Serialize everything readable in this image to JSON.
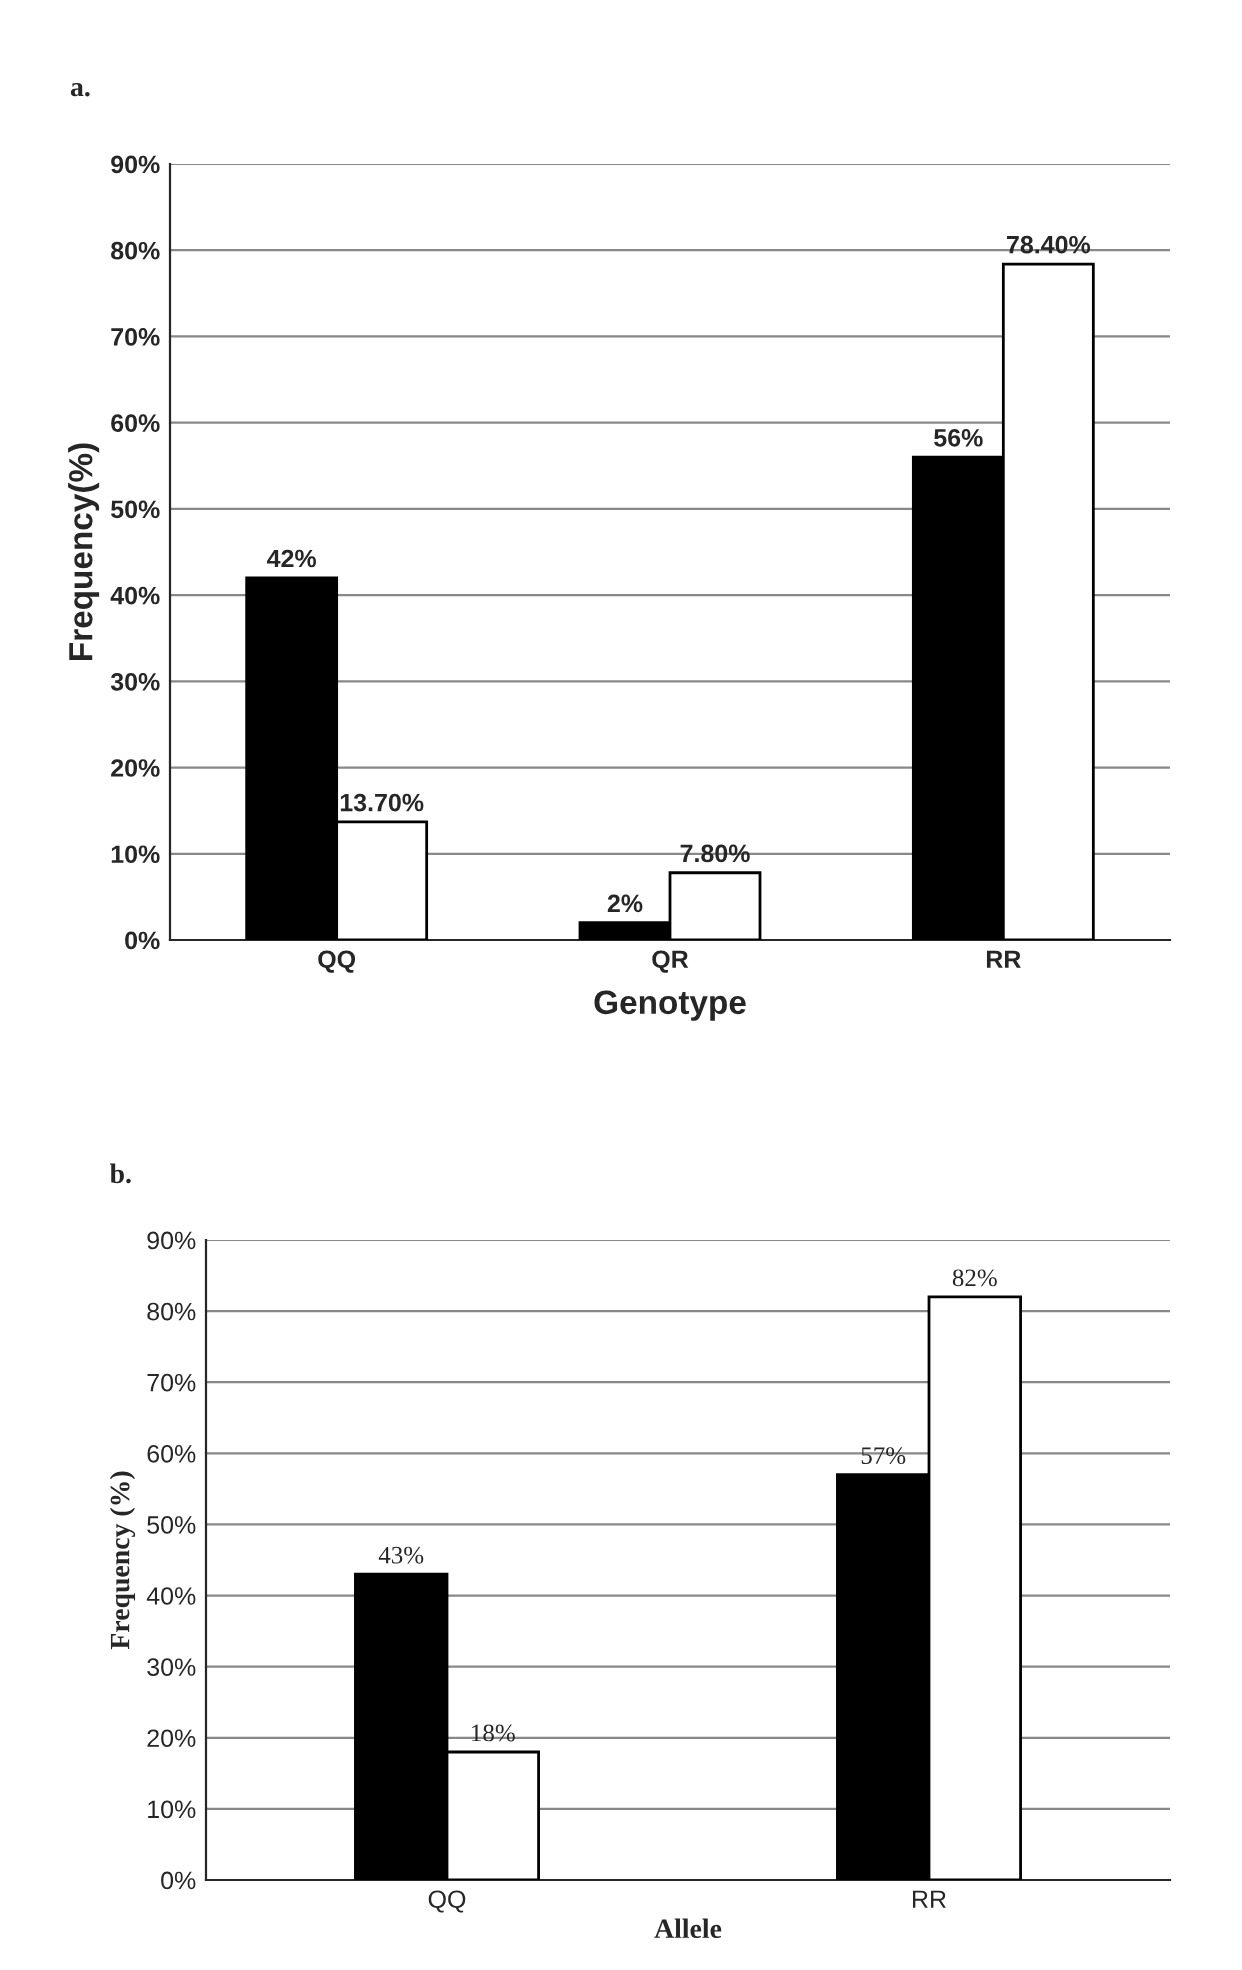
{
  "chart_data": [
    {
      "type": "bar",
      "title": "a.",
      "xlabel": "Genotype",
      "ylabel": "Frequency(%)",
      "categories": [
        "QQ",
        "QR",
        "RR"
      ],
      "series": [
        {
          "color": "#000000",
          "values": [
            42,
            2,
            56
          ],
          "value_labels": [
            "42%",
            "2%",
            "56%"
          ]
        },
        {
          "color": "#ffffff",
          "values": [
            13.7,
            7.8,
            78.4
          ],
          "value_labels": [
            "13.70%",
            "7.80%",
            "78.40%"
          ]
        }
      ],
      "ylim": [
        0,
        90
      ],
      "yticks": [
        {
          "value": 0,
          "label": "0%"
        },
        {
          "value": 10,
          "label": "10%"
        },
        {
          "value": 20,
          "label": "20%"
        },
        {
          "value": 30,
          "label": "30%"
        },
        {
          "value": 40,
          "label": "40%"
        },
        {
          "value": 50,
          "label": "50%"
        },
        {
          "value": 60,
          "label": "60%"
        },
        {
          "value": 70,
          "label": "70%"
        },
        {
          "value": 80,
          "label": "80%"
        },
        {
          "value": 90,
          "label": "90%"
        }
      ],
      "grid": "y",
      "legend": false
    },
    {
      "type": "bar",
      "title": "b.",
      "xlabel": "Allele",
      "ylabel": "Frequency (%)",
      "categories": [
        "QQ",
        "RR"
      ],
      "series": [
        {
          "color": "#000000",
          "values": [
            43,
            57
          ],
          "value_labels": [
            "43%",
            "57%"
          ]
        },
        {
          "color": "#ffffff",
          "values": [
            18,
            82
          ],
          "value_labels": [
            "18%",
            "82%"
          ]
        }
      ],
      "ylim": [
        0,
        90
      ],
      "yticks": [
        {
          "value": 0,
          "label": "0%"
        },
        {
          "value": 10,
          "label": "10%"
        },
        {
          "value": 20,
          "label": "20%"
        },
        {
          "value": 30,
          "label": "30%"
        },
        {
          "value": 40,
          "label": "40%"
        },
        {
          "value": 50,
          "label": "50%"
        },
        {
          "value": 60,
          "label": "60%"
        },
        {
          "value": 70,
          "label": "70%"
        },
        {
          "value": 80,
          "label": "80%"
        },
        {
          "value": 90,
          "label": "90%"
        }
      ],
      "grid": "y",
      "legend": false
    }
  ]
}
